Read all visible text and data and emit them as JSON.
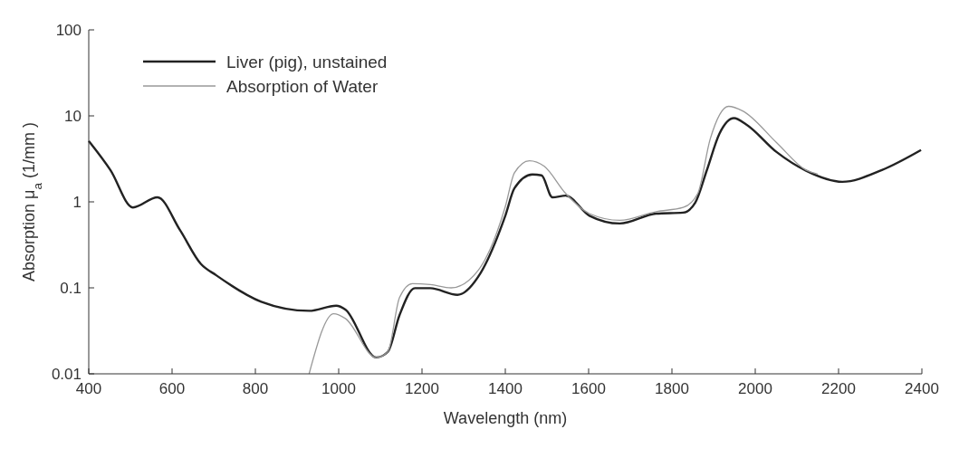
{
  "chart_data": {
    "type": "line",
    "xlabel": "Wavelength (nm)",
    "ylabel": "Absorption μ$_{a}$ (1/mm )",
    "log": "y",
    "xlim": [
      400,
      2400
    ],
    "xticks": [
      400,
      600,
      800,
      1000,
      1200,
      1400,
      1600,
      1800,
      2000,
      2200,
      2400
    ],
    "ylim": [
      0.01,
      100
    ],
    "yticks": [
      0.01,
      0.1,
      1,
      10,
      100
    ],
    "legend": "top left",
    "grid": false,
    "line_style": "solid",
    "marker": "none",
    "series": [
      {
        "name": "Liver (pig), unstained",
        "color": "#222222",
        "x": [
          400,
          452,
          506,
          565,
          619,
          669,
          706,
          814,
          929,
          994,
          1016,
          1090,
          1118,
          1146,
          1183,
          1220,
          1285,
          1341,
          1400,
          1422,
          1465,
          1487,
          1513,
          1545,
          1602,
          1675,
          1762,
          1827,
          1856,
          1884,
          1914,
          1949,
          1979,
          2051,
          2122,
          2209,
          2304,
          2398
        ],
        "values": [
          5.1,
          2.34,
          0.86,
          1.13,
          0.47,
          0.19,
          0.14,
          0.069,
          0.054,
          0.062,
          0.056,
          0.0155,
          0.018,
          0.048,
          0.099,
          0.099,
          0.083,
          0.15,
          0.69,
          1.44,
          2.08,
          2.03,
          1.13,
          1.18,
          0.69,
          0.56,
          0.73,
          0.75,
          0.98,
          2.35,
          6.2,
          9.4,
          7.9,
          3.8,
          2.3,
          1.71,
          2.34,
          4.0
        ]
      },
      {
        "name": "Absorption of Water",
        "color": "#999999",
        "x": [
          929,
          988,
          1016,
          1090,
          1118,
          1146,
          1177,
          1220,
          1270,
          1335,
          1400,
          1422,
          1458,
          1493,
          1545,
          1602,
          1675,
          1762,
          1827,
          1862,
          1892,
          1936,
          1970,
          2051,
          2122,
          2150
        ],
        "values": [
          0.01,
          0.05,
          0.044,
          0.0155,
          0.018,
          0.077,
          0.112,
          0.109,
          0.1,
          0.16,
          0.88,
          2.18,
          3.0,
          2.6,
          1.25,
          0.73,
          0.61,
          0.77,
          0.86,
          1.25,
          5.4,
          12.9,
          11.4,
          4.9,
          2.34,
          2.1
        ]
      }
    ]
  }
}
